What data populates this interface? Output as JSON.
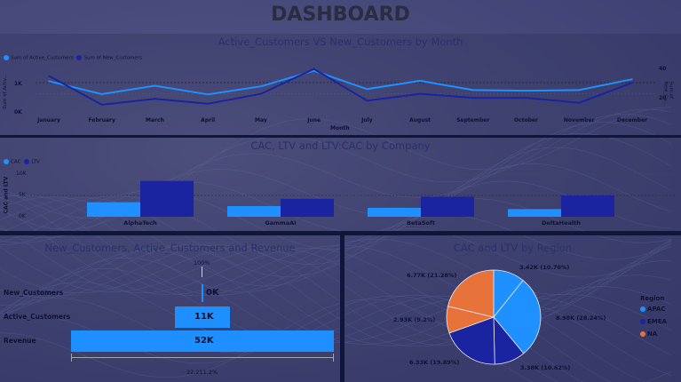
{
  "header": {
    "title": "DASHBOARD"
  },
  "colors": {
    "light": "#1e90ff",
    "dark": "#1a24a0",
    "orange": "#e8733a"
  },
  "line_panel": {
    "title": "Active_Customers VS New_Customers by Month",
    "legend": [
      "Sum of Active_Customers",
      "Sum of New_Customers"
    ],
    "ylabel_left": "Sum of Activ...",
    "ylabel_right": "Sum of New_Cu...",
    "xlabel": "Month",
    "y_left_ticks": [
      "1K",
      "0K"
    ],
    "y_right_ticks": [
      "40",
      "20"
    ]
  },
  "bar_panel": {
    "title": "CAC, LTV and LTV:CAC by Company",
    "legend": [
      "CAC",
      "LTV"
    ],
    "ylabel": "CAC and LTV",
    "y_ticks": [
      "10K",
      "5K",
      "0K"
    ]
  },
  "funnel_panel": {
    "title": "New_Customers, Active_Customers and Revenue",
    "top_label": "100%",
    "bottom_label": "22,211.2%",
    "rows": [
      {
        "label": "New_Customers",
        "value_label": "0K",
        "value": 0
      },
      {
        "label": "Active_Customers",
        "value_label": "11K",
        "value": 11000
      },
      {
        "label": "Revenue",
        "value_label": "52K",
        "value": 52000
      }
    ]
  },
  "pie_panel": {
    "title": "CAC and LTV by Region",
    "legend_title": "Region",
    "legend": [
      "APAC",
      "EMEA",
      "NA"
    ]
  },
  "chart_data": [
    {
      "type": "line",
      "x": [
        "January",
        "February",
        "March",
        "April",
        "May",
        "June",
        "July",
        "August",
        "September",
        "October",
        "November",
        "December"
      ],
      "series": [
        {
          "name": "Sum of Active_Customers",
          "axis": "left",
          "values": [
            1050,
            630,
            900,
            620,
            880,
            1380,
            790,
            1060,
            760,
            740,
            760,
            1110
          ]
        },
        {
          "name": "Sum of New_Customers",
          "axis": "right",
          "values": [
            38,
            9,
            15,
            10,
            20,
            45,
            13,
            20,
            16,
            16,
            11,
            31
          ]
        }
      ],
      "ylim_left": [
        0,
        1600
      ],
      "ylim_right": [
        0,
        50
      ],
      "xlabel": "Month"
    },
    {
      "type": "bar",
      "categories": [
        "AlphaTech",
        "GammaAI",
        "BetaSoft",
        "DeltaHealth"
      ],
      "series": [
        {
          "name": "CAC",
          "values": [
            3400,
            2500,
            2100,
            1800
          ]
        },
        {
          "name": "LTV",
          "values": [
            8400,
            4200,
            4700,
            5000
          ]
        }
      ],
      "ylabel": "CAC and LTV",
      "ylim": [
        0,
        10000
      ]
    },
    {
      "type": "pie",
      "slices": [
        {
          "label": "3.42K (10.76%)",
          "value": 10.76,
          "region": "APAC"
        },
        {
          "label": "8.98K (28.24%)",
          "value": 28.24,
          "region": "APAC"
        },
        {
          "label": "3.38K (10.62%)",
          "value": 10.62,
          "region": "EMEA"
        },
        {
          "label": "6.33K (19.89%)",
          "value": 19.89,
          "region": "EMEA"
        },
        {
          "label": "2.93K (9.2%)",
          "value": 9.2,
          "region": "NA"
        },
        {
          "label": "6.77K (21.28%)",
          "value": 21.28,
          "region": "NA"
        }
      ]
    }
  ]
}
